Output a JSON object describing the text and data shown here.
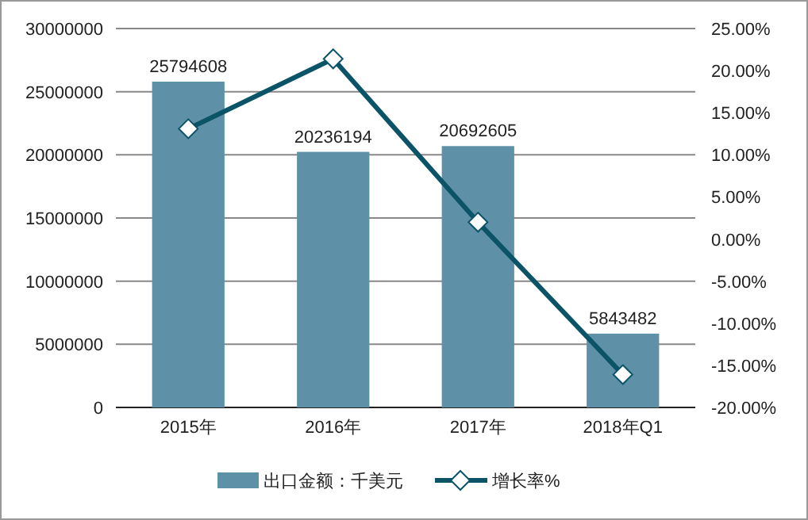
{
  "chart_data": {
    "type": "bar",
    "categories": [
      "2015年",
      "2016年",
      "2017年",
      "2018年Q1"
    ],
    "series": [
      {
        "name": "出口金额：千美元",
        "color": "#5e90a8",
        "values": [
          25794608,
          20236194,
          20692605,
          5843482
        ],
        "value_labels": [
          "25794608",
          "20236194",
          "20692605",
          "5843482"
        ]
      },
      {
        "name": "增长率%",
        "type": "line",
        "axis": "y2",
        "color": "#0b5468",
        "marker": "diamond",
        "values": [
          13.1,
          21.4,
          2.0,
          -16.1
        ]
      }
    ],
    "ylim": [
      0,
      30000000
    ],
    "yticks": [
      0,
      5000000,
      10000000,
      15000000,
      20000000,
      25000000,
      30000000
    ],
    "y2lim": [
      -20,
      25
    ],
    "y2ticks": [
      {
        "value": -20,
        "label": "-20.00%"
      },
      {
        "value": -15,
        "label": "-15.00%"
      },
      {
        "value": -10,
        "label": "-10.00%"
      },
      {
        "value": -5,
        "label": "-5.00%"
      },
      {
        "value": 0,
        "label": "0.00%"
      },
      {
        "value": 5,
        "label": "5.00%"
      },
      {
        "value": 10,
        "label": "10.00%"
      },
      {
        "value": 15,
        "label": "15.00%"
      },
      {
        "value": 20,
        "label": "20.00%"
      },
      {
        "value": 25,
        "label": "25.00%"
      }
    ],
    "grid": "y",
    "legend": "bottom"
  }
}
